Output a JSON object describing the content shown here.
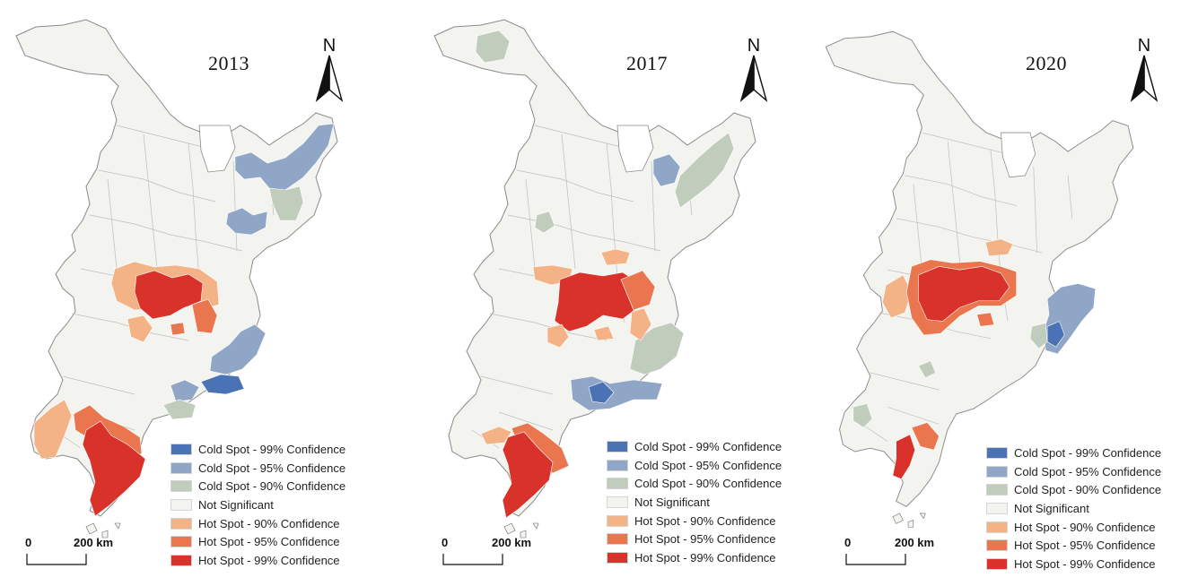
{
  "legend": [
    {
      "label": "Cold Spot - 99% Confidence",
      "color": "#4a73b5"
    },
    {
      "label": "Cold Spot - 95% Confidence",
      "color": "#8fa6c6"
    },
    {
      "label": "Cold Spot - 90% Confidence",
      "color": "#c0ccbc"
    },
    {
      "label": "Not Significant",
      "color": "#f3f3ef"
    },
    {
      "label": "Hot Spot - 90% Confidence",
      "color": "#f4b386"
    },
    {
      "label": "Hot Spot - 95% Confidence",
      "color": "#e9764f"
    },
    {
      "label": "Hot Spot - 99% Confidence",
      "color": "#d9322b"
    }
  ],
  "north_label": "N",
  "scale": {
    "zero": "0",
    "distance": "200 km"
  },
  "panels": [
    {
      "year": "2013"
    },
    {
      "year": "2017"
    },
    {
      "year": "2020"
    }
  ]
}
